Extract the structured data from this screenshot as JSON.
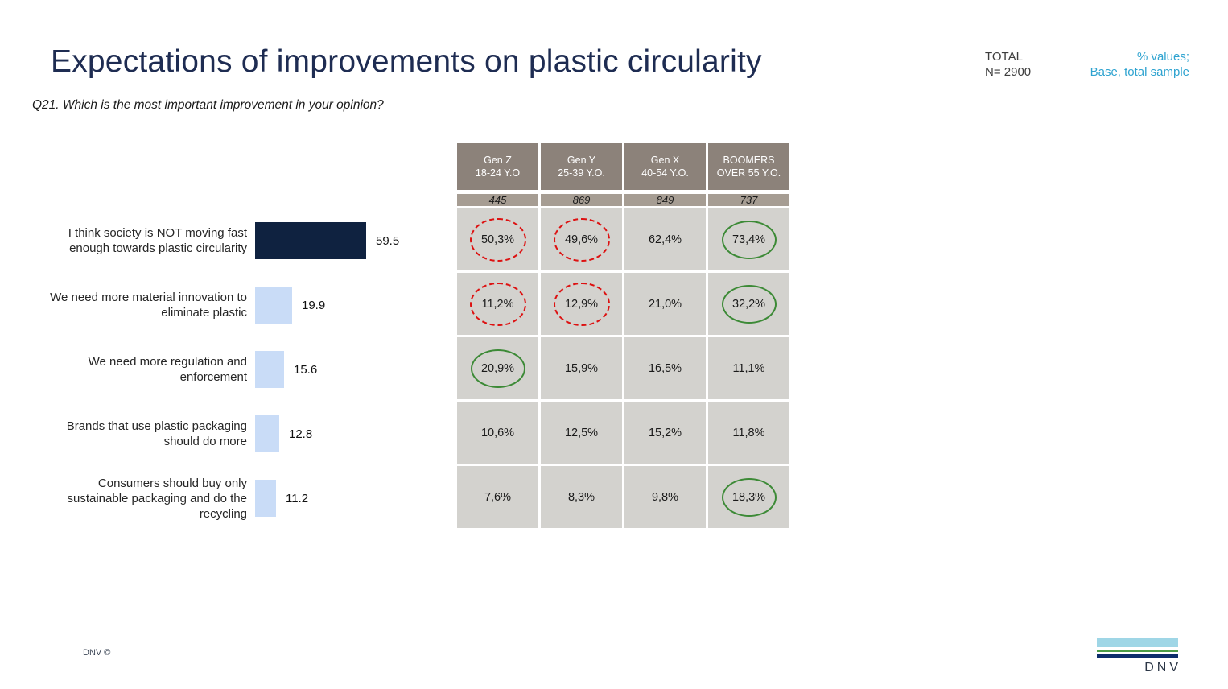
{
  "header": {
    "title": "Expectations of improvements on plastic circularity",
    "question": "Q21. Which is the most important improvement in your opinion?",
    "total_label": "TOTAL",
    "total_n": "N= 2900",
    "note_line1": "% values;",
    "note_line2": "Base, total sample"
  },
  "footer": {
    "copyright": "DNV ©",
    "logo_text": "DNV"
  },
  "colors": {
    "title_navy": "#1e2c52",
    "note_blue": "#2ea3d0",
    "bar_dark": "#0f2240",
    "bar_light": "#c9dcf7",
    "table_header_bg": "#8c827a",
    "table_base_bg": "#a69d93",
    "table_cell_bg": "#d3d2ce",
    "highlight_red": "#dd1111",
    "highlight_green": "#3c8a36",
    "logo_sky": "#9fd6e6",
    "logo_green": "#4c9c45",
    "logo_navy": "#0d2d6b"
  },
  "chart_data": [
    {
      "type": "bar",
      "orientation": "horizontal",
      "title": "Expectations of improvements on plastic circularity",
      "xlabel": "",
      "ylabel": "",
      "xlim": [
        0,
        65
      ],
      "grid": false,
      "legend": false,
      "categories": [
        "I think society is NOT moving fast enough towards plastic circularity",
        "We need more material innovation to eliminate plastic",
        "We need more regulation and enforcement",
        "Brands that use plastic packaging should do more",
        "Consumers should buy only sustainable packaging and do the recycling"
      ],
      "values": [
        59.5,
        19.9,
        15.6,
        12.8,
        11.2
      ],
      "bar_colors": [
        "#0f2240",
        "#c9dcf7",
        "#c9dcf7",
        "#c9dcf7",
        "#c9dcf7"
      ]
    },
    {
      "type": "table",
      "column_headers": [
        {
          "line1": "Gen Z",
          "line2": "18-24 Y.O"
        },
        {
          "line1": "Gen Y",
          "line2": "25-39 Y.O."
        },
        {
          "line1": "Gen X",
          "line2": "40-54 Y.O."
        },
        {
          "line1": "BOOMERS",
          "line2": "OVER 55 Y.O."
        }
      ],
      "base_values": [
        "445",
        "869",
        "849",
        "737"
      ],
      "rows": [
        {
          "cells": [
            {
              "text": "50,3%",
              "highlight": "red-dashed"
            },
            {
              "text": "49,6%",
              "highlight": "red-dashed"
            },
            {
              "text": "62,4%",
              "highlight": null
            },
            {
              "text": "73,4%",
              "highlight": "green"
            }
          ]
        },
        {
          "cells": [
            {
              "text": "11,2%",
              "highlight": "red-dashed"
            },
            {
              "text": "12,9%",
              "highlight": "red-dashed"
            },
            {
              "text": "21,0%",
              "highlight": null
            },
            {
              "text": "32,2%",
              "highlight": "green"
            }
          ]
        },
        {
          "cells": [
            {
              "text": "20,9%",
              "highlight": "green"
            },
            {
              "text": "15,9%",
              "highlight": null
            },
            {
              "text": "16,5%",
              "highlight": null
            },
            {
              "text": "11,1%",
              "highlight": null
            }
          ]
        },
        {
          "cells": [
            {
              "text": "10,6%",
              "highlight": null
            },
            {
              "text": "12,5%",
              "highlight": null
            },
            {
              "text": "15,2%",
              "highlight": null
            },
            {
              "text": "11,8%",
              "highlight": null
            }
          ]
        },
        {
          "cells": [
            {
              "text": "7,6%",
              "highlight": null
            },
            {
              "text": "8,3%",
              "highlight": null
            },
            {
              "text": "9,8%",
              "highlight": null
            },
            {
              "text": "18,3%",
              "highlight": "green"
            }
          ]
        }
      ]
    }
  ]
}
